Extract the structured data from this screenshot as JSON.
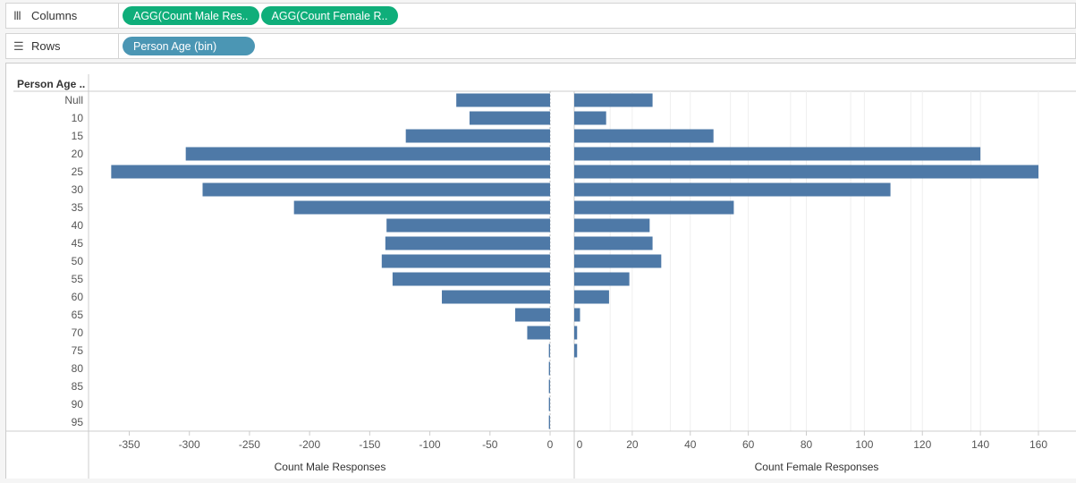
{
  "shelves": {
    "columns_label": "Columns",
    "columns_pills": [
      "AGG(Count Male Res..",
      "AGG(Count Female R.."
    ],
    "rows_label": "Rows",
    "rows_pills": [
      "Person Age (bin)"
    ]
  },
  "colors": {
    "bar": "#4e79a7",
    "pill_green": "#0fae7a",
    "pill_blue": "#4b96b4"
  },
  "chart_data": {
    "type": "bar",
    "row_header": "Person Age ..",
    "categories": [
      "Null",
      "10",
      "15",
      "20",
      "25",
      "30",
      "35",
      "40",
      "45",
      "50",
      "55",
      "60",
      "65",
      "70",
      "75",
      "80",
      "85",
      "90",
      "95"
    ],
    "series": [
      {
        "name": "Count Male Responses",
        "values": [
          -78,
          -67,
          -120,
          -303,
          -365,
          -289,
          -213,
          -136,
          -137,
          -140,
          -131,
          -90,
          -29,
          -19,
          -1,
          -1,
          -1,
          -1,
          -1
        ],
        "xlim": [
          -370,
          0
        ],
        "ticks": [
          -350,
          -300,
          -250,
          -200,
          -150,
          -100,
          -50,
          0
        ]
      },
      {
        "name": "Count Female Responses",
        "values": [
          27,
          11,
          48,
          140,
          160,
          109,
          55,
          26,
          27,
          30,
          19,
          12,
          2,
          1,
          1,
          0,
          0,
          0,
          0
        ],
        "xlim": [
          0,
          165
        ],
        "ticks": [
          0,
          20,
          40,
          60,
          80,
          100,
          120,
          140,
          160
        ]
      }
    ],
    "grid": true
  }
}
